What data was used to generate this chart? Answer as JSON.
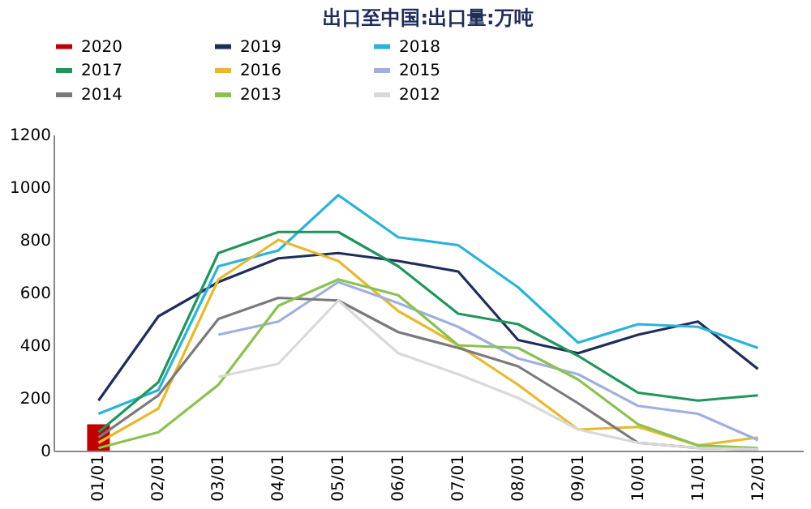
{
  "chart_data": {
    "type": "line",
    "title": "出口至中国:出口量:万吨",
    "categories": [
      "01/01",
      "02/01",
      "03/01",
      "04/01",
      "05/01",
      "06/01",
      "07/01",
      "08/01",
      "09/01",
      "10/01",
      "11/01",
      "12/01"
    ],
    "series": [
      {
        "name": "2020",
        "type": "bar",
        "color": "#c00000",
        "values": [
          100,
          null,
          null,
          null,
          null,
          null,
          null,
          null,
          null,
          null,
          null,
          null
        ]
      },
      {
        "name": "2019",
        "color": "#1f2d5a",
        "values": [
          190,
          510,
          640,
          730,
          750,
          720,
          680,
          420,
          370,
          440,
          490,
          310
        ]
      },
      {
        "name": "2018",
        "color": "#2ab3d6",
        "values": [
          140,
          230,
          700,
          760,
          970,
          810,
          780,
          620,
          410,
          480,
          470,
          390
        ]
      },
      {
        "name": "2017",
        "color": "#23955a",
        "values": [
          70,
          260,
          750,
          830,
          830,
          700,
          520,
          480,
          360,
          220,
          190,
          210
        ]
      },
      {
        "name": "2016",
        "color": "#e8b830",
        "values": [
          30,
          160,
          650,
          800,
          720,
          530,
          400,
          250,
          80,
          90,
          20,
          50
        ]
      },
      {
        "name": "2015",
        "color": "#9fb0e0",
        "values": [
          null,
          null,
          440,
          490,
          640,
          560,
          470,
          350,
          290,
          170,
          140,
          40
        ]
      },
      {
        "name": "2014",
        "color": "#7a7a7a",
        "values": [
          50,
          210,
          500,
          580,
          570,
          450,
          390,
          320,
          180,
          30,
          10,
          5
        ]
      },
      {
        "name": "2013",
        "color": "#8cc152",
        "values": [
          10,
          70,
          250,
          550,
          650,
          590,
          400,
          390,
          270,
          100,
          20,
          10
        ]
      },
      {
        "name": "2012",
        "color": "#d9d9d9",
        "values": [
          null,
          null,
          280,
          330,
          570,
          370,
          290,
          200,
          80,
          30,
          10,
          5
        ]
      }
    ],
    "ylim": [
      0,
      1200
    ],
    "yticks": [
      0,
      200,
      400,
      600,
      800,
      1000,
      1200
    ],
    "grid": false,
    "legend": "top"
  }
}
